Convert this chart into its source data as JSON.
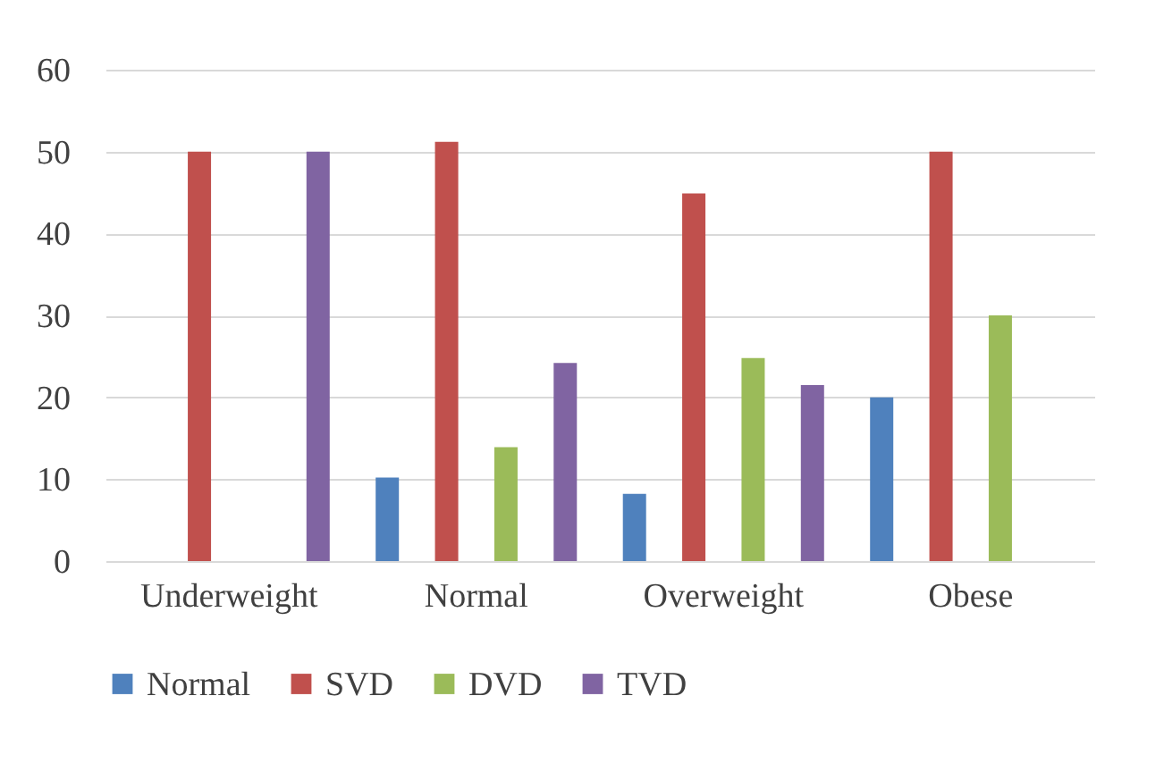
{
  "chart_data": {
    "type": "bar",
    "categories": [
      "Underweight",
      "Normal",
      "Overweight",
      "Obese"
    ],
    "series": [
      {
        "name": "Normal",
        "color": "#4f81bd",
        "values": [
          0,
          10.2,
          8.2,
          20
        ]
      },
      {
        "name": "SVD",
        "color": "#c0504d",
        "values": [
          50,
          51.2,
          44.9,
          50
        ]
      },
      {
        "name": "DVD",
        "color": "#9bbb59",
        "values": [
          0,
          13.9,
          24.8,
          30
        ]
      },
      {
        "name": "TVD",
        "color": "#8064a2",
        "values": [
          50,
          24.2,
          21.5,
          0
        ]
      }
    ],
    "ylim": [
      0,
      60
    ],
    "yticks": [
      0,
      10,
      20,
      30,
      40,
      50,
      60
    ],
    "grid": "y",
    "legend": "bottom"
  }
}
